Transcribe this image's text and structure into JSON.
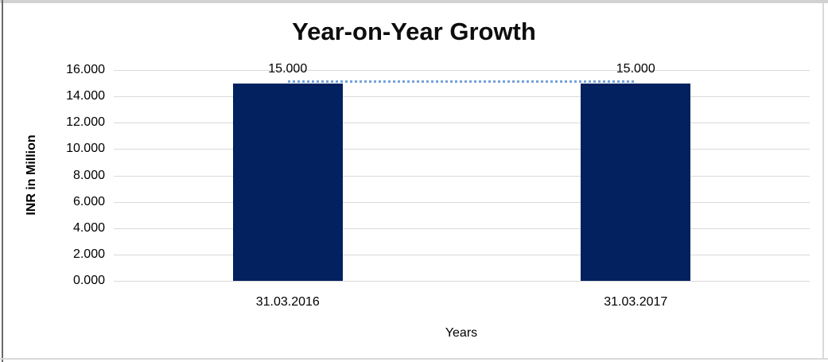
{
  "chart_data": {
    "type": "bar",
    "title": "Year-on-Year Growth",
    "xlabel": "Years",
    "ylabel": "INR in Million",
    "categories": [
      "31.03.2016",
      "31.03.2017"
    ],
    "series": [
      {
        "name": "INR in Million",
        "type": "bar",
        "values": [
          15.0,
          15.0
        ]
      },
      {
        "name": "connector-line",
        "type": "line",
        "line_style": "dotted",
        "values": [
          15.0,
          15.0
        ]
      }
    ],
    "data_labels": [
      "15.000",
      "15.000"
    ],
    "ylim": [
      0,
      16
    ],
    "ytick_step": 2,
    "ytick_labels": [
      "16.000",
      "14.000",
      "12.000",
      "10.000",
      "8.000",
      "6.000",
      "4.000",
      "2.000",
      "0.000"
    ],
    "grid": true,
    "legend": false,
    "colors": {
      "bar": "#02215E",
      "dotted_line": "#74A2D8",
      "gridline": "#D9D9D9",
      "text": "#000000"
    }
  }
}
